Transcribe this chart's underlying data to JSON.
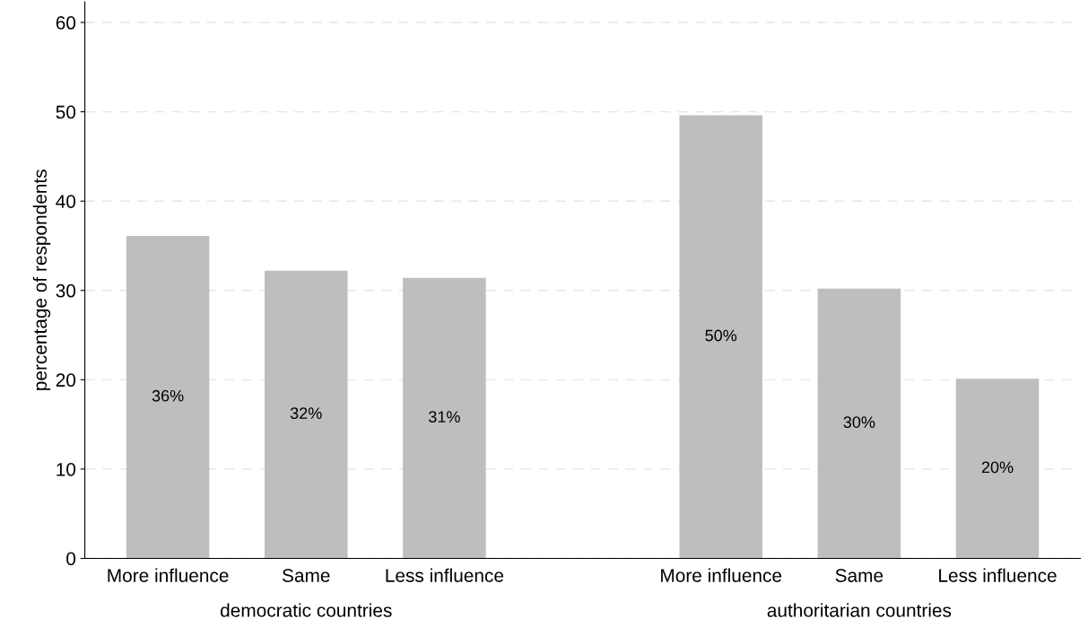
{
  "chart_data": {
    "type": "bar",
    "ylabel": "percentage of respondents",
    "categories": [
      "More influence",
      "Same",
      "Less influence",
      null,
      "More influence",
      "Same",
      "Less influence"
    ],
    "values": [
      36.1,
      32.2,
      31.4,
      null,
      49.6,
      30.2,
      20.1
    ],
    "value_labels": [
      "36%",
      "32%",
      "31%",
      null,
      "50%",
      "30%",
      "20%"
    ],
    "color": "#bebebe",
    "annotations": [
      "democratic countries",
      "authoritarian countries"
    ],
    "ylim": [
      0,
      62.3
    ],
    "yticks": [
      0,
      10,
      20,
      30,
      40,
      50,
      60
    ],
    "grid": "y"
  }
}
